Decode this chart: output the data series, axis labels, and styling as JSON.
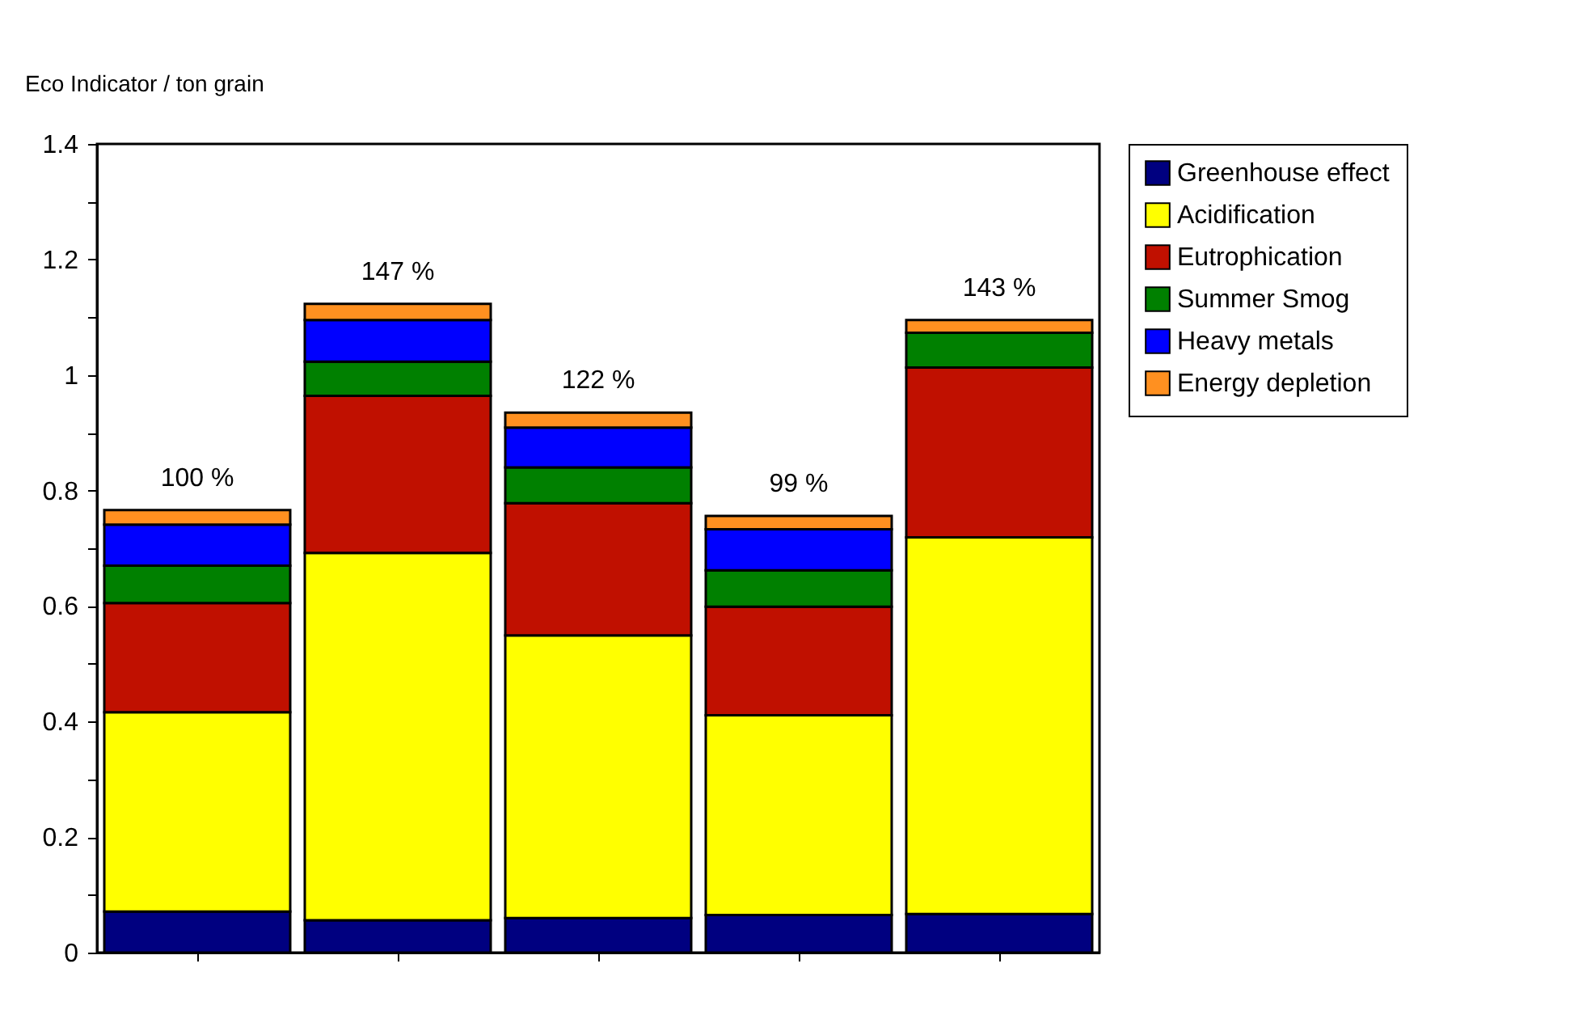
{
  "chart_data": {
    "type": "bar",
    "stacked": true,
    "ylabel": "Eco Indicator / ton grain",
    "categories": [
      null,
      null,
      null,
      null,
      null
    ],
    "series": [
      {
        "name": "Greenhouse effect",
        "color": "#000080",
        "values": [
          0.071,
          0.056,
          0.06,
          0.065,
          0.067
        ]
      },
      {
        "name": "Acidification",
        "color": "#ffff00",
        "values": [
          0.345,
          0.636,
          0.489,
          0.346,
          0.652
        ]
      },
      {
        "name": "Eutrophication",
        "color": "#c01000",
        "values": [
          0.189,
          0.272,
          0.229,
          0.188,
          0.294
        ]
      },
      {
        "name": "Summer Smog",
        "color": "#008000",
        "values": [
          0.065,
          0.059,
          0.062,
          0.063,
          0.06
        ]
      },
      {
        "name": "Heavy metals",
        "color": "#0000ff",
        "values": [
          0.071,
          0.072,
          0.069,
          0.071,
          0
        ]
      },
      {
        "name": "Energy depletion",
        "color": "#ff9020",
        "values": [
          0.025,
          0.028,
          0.026,
          0.023,
          0.022
        ]
      }
    ],
    "annotations": [
      {
        "text": "100 %",
        "y": 0.766
      },
      {
        "text": "147 %",
        "y": 1.123
      },
      {
        "text": "122 %",
        "y": 0.935
      },
      {
        "text": "99 %",
        "y": 0.756
      },
      {
        "text": "143 %",
        "y": 1.095
      }
    ],
    "ylim": [
      0,
      1.4
    ],
    "yticks": [
      0,
      {
        "value": 0.1,
        "label": null
      },
      0.2,
      {
        "value": 0.3,
        "label": null
      },
      0.4,
      {
        "value": 0.5,
        "label": null
      },
      0.6,
      {
        "value": 0.7,
        "label": null
      },
      0.8,
      {
        "value": 0.9,
        "label": null
      },
      1,
      {
        "value": 1.1,
        "label": null
      },
      1.2,
      {
        "value": 1.3,
        "label": null
      },
      1.4
    ],
    "grid": false,
    "legend": "top right",
    "tick_labels": "y"
  }
}
